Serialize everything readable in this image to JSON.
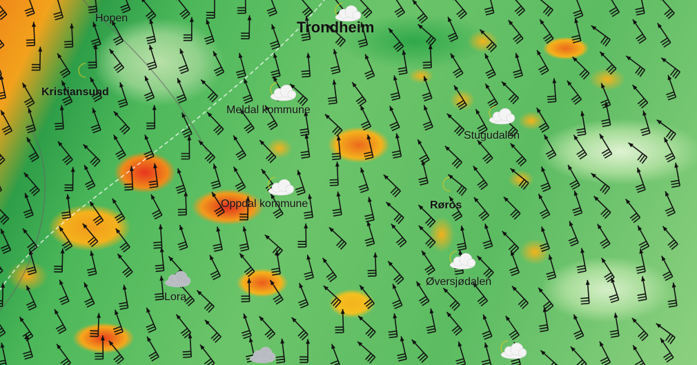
{
  "map": {
    "type": "weather-wind-precipitation",
    "colors": {
      "low": "#2e9e48",
      "light": "#a6dc98",
      "moderate": "#f4b21c",
      "high": "#f08a1a",
      "extreme": "#e02a1c",
      "barb": "#111111"
    },
    "places": [
      {
        "name": "Hopen",
        "style": "normal"
      },
      {
        "name": "Trondheim",
        "style": "big"
      },
      {
        "name": "Kristiansund",
        "style": "bold"
      },
      {
        "name": "Meldal kommune",
        "style": "normal"
      },
      {
        "name": "Stugudalen",
        "style": "normal"
      },
      {
        "name": "Oppdal kommune",
        "style": "normal"
      },
      {
        "name": "Røros",
        "style": "bold"
      },
      {
        "name": "Øversjødalen",
        "style": "normal"
      },
      {
        "name": "Lora",
        "style": "normal"
      }
    ],
    "weather_icons": [
      "partly-cloudy-night",
      "moon",
      "partly-cloudy-night",
      "partly-cloudy-night",
      "partly-cloudy-night",
      "moon",
      "partly-cloudy-night",
      "cloud",
      "cloud",
      "partly-cloudy-night"
    ]
  }
}
